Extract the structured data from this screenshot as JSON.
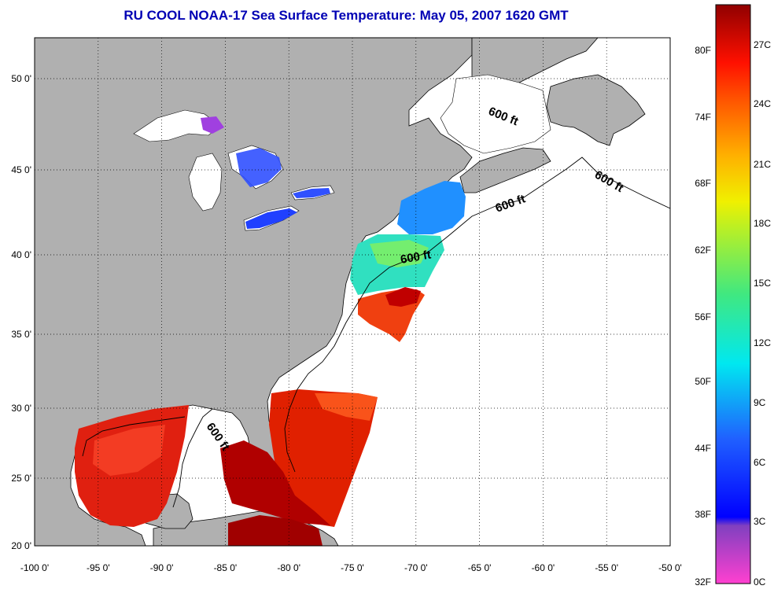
{
  "title": "RU COOL  NOAA-17  Sea Surface Temperature:  May 05, 2007 1620 GMT",
  "map": {
    "lon_ticks": [
      "-100 0'",
      "-95 0'",
      "-90 0'",
      "-85 0'",
      "-80 0'",
      "-75 0'",
      "-70 0'",
      "-65 0'",
      "-60 0'",
      "-55 0'",
      "-50 0'"
    ],
    "lat_ticks": [
      "50 0'",
      "45 0'",
      "40 0'",
      "35 0'",
      "30 0'",
      "25 0'",
      "20 0'"
    ],
    "contour_label": "600 ft",
    "colors": {
      "land": "#b0b0b0",
      "ocean_nodata": "#ffffff",
      "frame": "#000000"
    }
  },
  "colorbar": {
    "fahrenheit": [
      "80F",
      "74F",
      "68F",
      "62F",
      "56F",
      "50F",
      "44F",
      "38F",
      "32F"
    ],
    "celsius": [
      "27C",
      "24C",
      "21C",
      "18C",
      "15C",
      "12C",
      "9C",
      "6C",
      "3C",
      "0C"
    ]
  }
}
